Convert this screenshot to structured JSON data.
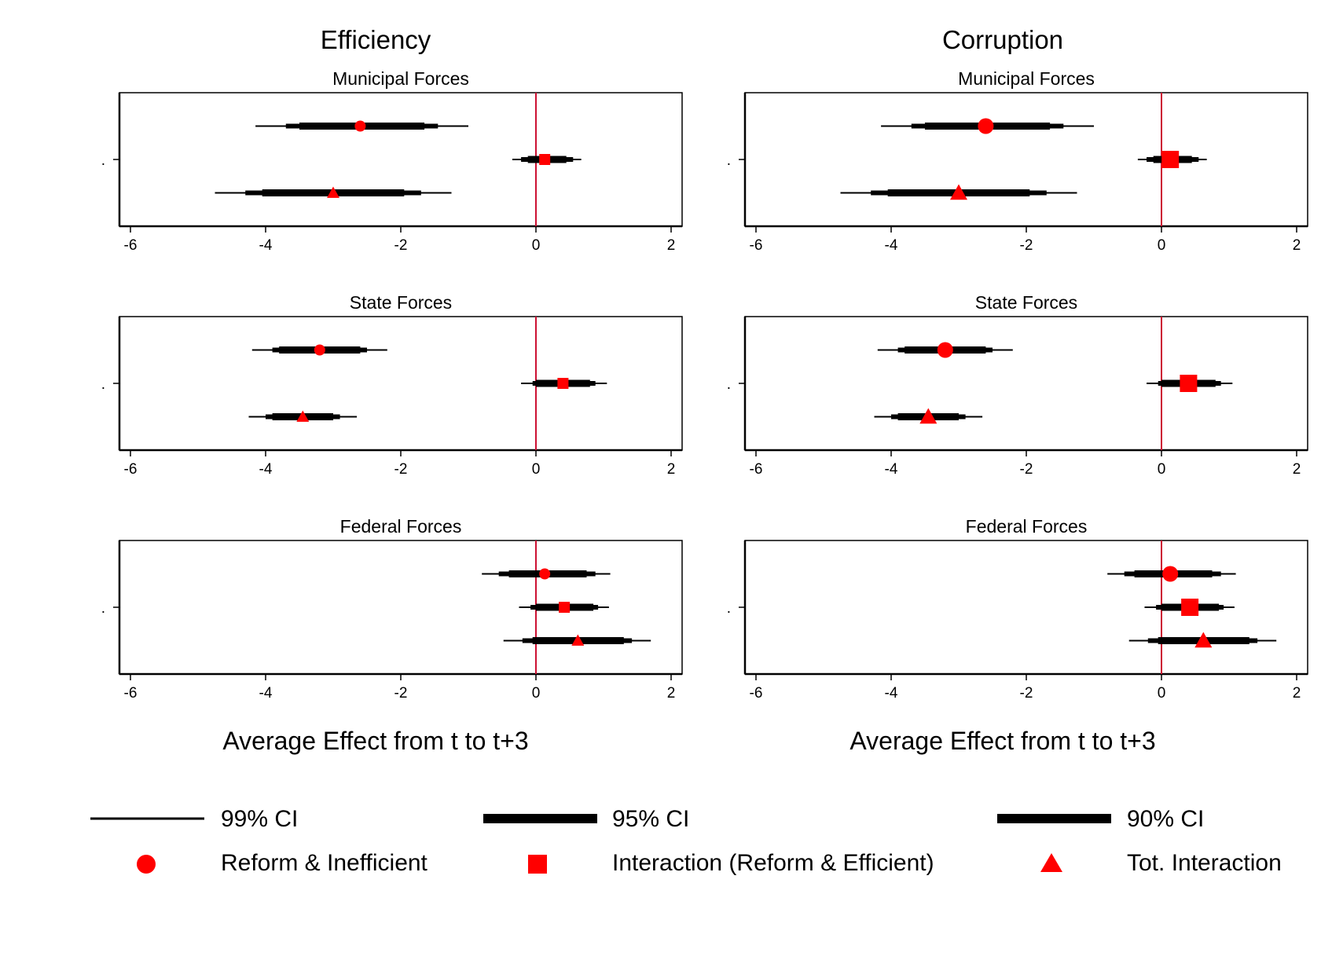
{
  "column_titles": [
    "Efficiency",
    "Corruption"
  ],
  "xlabels": [
    "Average Effect from t to t+3",
    "Average Effect from t to t+3"
  ],
  "y_tick_label": ".",
  "legend": {
    "ci99": "99% CI",
    "ci95": "95% CI",
    "ci90": "90% CI",
    "reform_inefficient": "Reform & Inefficient",
    "interaction": "Interaction (Reform & Efficient)",
    "tot_interaction": "Tot. Interaction"
  },
  "colors": {
    "marker": "#ff0000",
    "zero_line": "#cc1133",
    "ci": "#000000"
  },
  "chart_data": [
    {
      "type": "coefplot",
      "column": "Efficiency",
      "title": "Municipal Forces",
      "xlim": [
        -6,
        2
      ],
      "xticks": [
        -6,
        -4,
        -2,
        0,
        2
      ],
      "series": [
        {
          "name": "Reform & Inefficient",
          "marker": "circle",
          "estimate": -2.6,
          "ci99": [
            -4.15,
            -1.0
          ],
          "ci95": [
            -3.7,
            -1.45
          ],
          "ci90": [
            -3.5,
            -1.65
          ]
        },
        {
          "name": "Interaction (Reform & Efficient)",
          "marker": "square",
          "estimate": 0.13,
          "ci99": [
            -0.35,
            0.67
          ],
          "ci95": [
            -0.22,
            0.55
          ],
          "ci90": [
            -0.12,
            0.45
          ]
        },
        {
          "name": "Tot. Interaction",
          "marker": "triangle",
          "estimate": -3.0,
          "ci99": [
            -4.75,
            -1.25
          ],
          "ci95": [
            -4.3,
            -1.7
          ],
          "ci90": [
            -4.05,
            -1.95
          ]
        }
      ]
    },
    {
      "type": "coefplot",
      "column": "Corruption",
      "title": "Municipal Forces",
      "xlim": [
        -6,
        2
      ],
      "xticks": [
        -6,
        -4,
        -2,
        0,
        2
      ],
      "series": [
        {
          "name": "Reform & Inefficient",
          "marker": "circle",
          "estimate": -2.6,
          "ci99": [
            -4.15,
            -1.0
          ],
          "ci95": [
            -3.7,
            -1.45
          ],
          "ci90": [
            -3.5,
            -1.65
          ]
        },
        {
          "name": "Interaction (Reform & Efficient)",
          "marker": "square",
          "estimate": 0.13,
          "ci99": [
            -0.35,
            0.67
          ],
          "ci95": [
            -0.22,
            0.55
          ],
          "ci90": [
            -0.12,
            0.45
          ]
        },
        {
          "name": "Tot. Interaction",
          "marker": "triangle",
          "estimate": -3.0,
          "ci99": [
            -4.75,
            -1.25
          ],
          "ci95": [
            -4.3,
            -1.7
          ],
          "ci90": [
            -4.05,
            -1.95
          ]
        }
      ]
    },
    {
      "type": "coefplot",
      "column": "Efficiency",
      "title": "State Forces",
      "xlim": [
        -6,
        2
      ],
      "xticks": [
        -6,
        -4,
        -2,
        0,
        2
      ],
      "series": [
        {
          "name": "Reform & Inefficient",
          "marker": "circle",
          "estimate": -3.2,
          "ci99": [
            -4.2,
            -2.2
          ],
          "ci95": [
            -3.9,
            -2.5
          ],
          "ci90": [
            -3.8,
            -2.6
          ]
        },
        {
          "name": "Interaction (Reform & Efficient)",
          "marker": "square",
          "estimate": 0.4,
          "ci99": [
            -0.22,
            1.05
          ],
          "ci95": [
            -0.05,
            0.88
          ],
          "ci90": [
            0.0,
            0.8
          ]
        },
        {
          "name": "Tot. Interaction",
          "marker": "triangle",
          "estimate": -3.45,
          "ci99": [
            -4.25,
            -2.65
          ],
          "ci95": [
            -4.0,
            -2.9
          ],
          "ci90": [
            -3.9,
            -3.0
          ]
        }
      ]
    },
    {
      "type": "coefplot",
      "column": "Corruption",
      "title": "State Forces",
      "xlim": [
        -6,
        2
      ],
      "xticks": [
        -6,
        -4,
        -2,
        0,
        2
      ],
      "series": [
        {
          "name": "Reform & Inefficient",
          "marker": "circle",
          "estimate": -3.2,
          "ci99": [
            -4.2,
            -2.2
          ],
          "ci95": [
            -3.9,
            -2.5
          ],
          "ci90": [
            -3.8,
            -2.6
          ]
        },
        {
          "name": "Interaction (Reform & Efficient)",
          "marker": "square",
          "estimate": 0.4,
          "ci99": [
            -0.22,
            1.05
          ],
          "ci95": [
            -0.05,
            0.88
          ],
          "ci90": [
            0.0,
            0.8
          ]
        },
        {
          "name": "Tot. Interaction",
          "marker": "triangle",
          "estimate": -3.45,
          "ci99": [
            -4.25,
            -2.65
          ],
          "ci95": [
            -4.0,
            -2.9
          ],
          "ci90": [
            -3.9,
            -3.0
          ]
        }
      ]
    },
    {
      "type": "coefplot",
      "column": "Efficiency",
      "title": "Federal Forces",
      "xlim": [
        -6,
        2
      ],
      "xticks": [
        -6,
        -4,
        -2,
        0,
        2
      ],
      "series": [
        {
          "name": "Reform & Inefficient",
          "marker": "circle",
          "estimate": 0.13,
          "ci99": [
            -0.8,
            1.1
          ],
          "ci95": [
            -0.55,
            0.88
          ],
          "ci90": [
            -0.4,
            0.75
          ]
        },
        {
          "name": "Interaction (Reform & Efficient)",
          "marker": "square",
          "estimate": 0.42,
          "ci99": [
            -0.25,
            1.08
          ],
          "ci95": [
            -0.08,
            0.92
          ],
          "ci90": [
            0.0,
            0.85
          ]
        },
        {
          "name": "Tot. Interaction",
          "marker": "triangle",
          "estimate": 0.62,
          "ci99": [
            -0.48,
            1.7
          ],
          "ci95": [
            -0.2,
            1.42
          ],
          "ci90": [
            -0.05,
            1.3
          ]
        }
      ]
    },
    {
      "type": "coefplot",
      "column": "Corruption",
      "title": "Federal Forces",
      "xlim": [
        -6,
        2
      ],
      "xticks": [
        -6,
        -4,
        -2,
        0,
        2
      ],
      "series": [
        {
          "name": "Reform & Inefficient",
          "marker": "circle",
          "estimate": 0.13,
          "ci99": [
            -0.8,
            1.1
          ],
          "ci95": [
            -0.55,
            0.88
          ],
          "ci90": [
            -0.4,
            0.75
          ]
        },
        {
          "name": "Interaction (Reform & Efficient)",
          "marker": "square",
          "estimate": 0.42,
          "ci99": [
            -0.25,
            1.08
          ],
          "ci95": [
            -0.08,
            0.92
          ],
          "ci90": [
            0.0,
            0.85
          ]
        },
        {
          "name": "Tot. Interaction",
          "marker": "triangle",
          "estimate": 0.62,
          "ci99": [
            -0.48,
            1.7
          ],
          "ci95": [
            -0.2,
            1.42
          ],
          "ci90": [
            -0.05,
            1.3
          ]
        }
      ]
    }
  ]
}
